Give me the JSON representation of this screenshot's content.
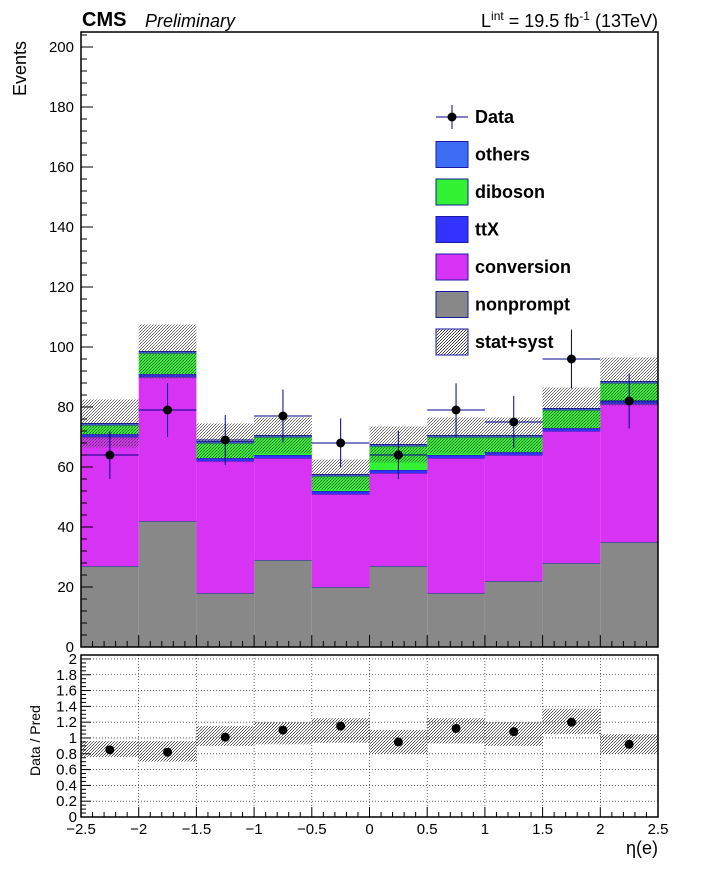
{
  "header": {
    "experiment": "CMS",
    "status": "Preliminary",
    "lumi_prefix": "L",
    "lumi_sup": "int",
    "lumi_value": " = 19.5 fb",
    "lumi_unit_sup": "-1",
    "energy": " (13TeV)"
  },
  "colors": {
    "others": "#3d6df5",
    "diboson": "#33f233",
    "ttX": "#3333ff",
    "conversion": "#d633f5",
    "nonprompt": "#888888",
    "outline": "#1a1aa6",
    "data": "#000000",
    "data_err": "#00008b"
  },
  "chart_data": [
    {
      "type": "bar",
      "stacked": true,
      "xlabel": "η(e)",
      "ylabel": "Events",
      "xlim": [
        -2.5,
        2.5
      ],
      "ylim": [
        0,
        205
      ],
      "bin_edges": [
        -2.5,
        -2.0,
        -1.5,
        -1.0,
        -0.5,
        0.0,
        0.5,
        1.0,
        1.5,
        2.0,
        2.5
      ],
      "x_ticks": [
        "−2.5",
        "−2",
        "−1.5",
        "−1",
        "−0.5",
        "0",
        "0.5",
        "1",
        "1.5",
        "2",
        "2.5"
      ],
      "y_ticks": [
        "0",
        "20",
        "40",
        "60",
        "80",
        "100",
        "120",
        "140",
        "160",
        "180",
        "200"
      ],
      "series": [
        {
          "name": "nonprompt",
          "values": [
            27,
            42,
            18,
            29,
            20,
            27,
            18,
            22,
            28,
            35
          ]
        },
        {
          "name": "conversion",
          "values": [
            43,
            48,
            44,
            34,
            31,
            31,
            45,
            42,
            44,
            46
          ]
        },
        {
          "name": "ttX",
          "values": [
            1,
            1,
            1,
            1,
            1,
            1,
            1,
            1,
            1,
            1
          ]
        },
        {
          "name": "diboson",
          "values": [
            3,
            7,
            5,
            6,
            5,
            8,
            6,
            5,
            6,
            6
          ]
        },
        {
          "name": "others",
          "values": [
            0.5,
            0.5,
            0.5,
            0.5,
            0.5,
            0.5,
            0.5,
            0.5,
            0.5,
            0.5
          ]
        }
      ],
      "total_uncertainty": [
        8,
        9,
        6,
        6,
        5,
        6,
        6,
        6,
        7,
        8
      ],
      "data": {
        "name": "Data",
        "x": [
          -2.25,
          -1.75,
          -1.25,
          -0.75,
          -0.25,
          0.25,
          0.75,
          1.25,
          1.75,
          2.25
        ],
        "y": [
          64,
          79,
          69,
          77,
          68,
          64,
          79,
          75,
          96,
          82
        ],
        "yerr": [
          8,
          9,
          8.3,
          8.8,
          8.2,
          8,
          8.9,
          8.7,
          9.8,
          9.1
        ]
      },
      "legend": {
        "position": "top-right",
        "entries": [
          "Data",
          "others",
          "diboson",
          "ttX",
          "conversion",
          "nonprompt",
          "stat+syst"
        ]
      }
    },
    {
      "type": "scatter",
      "xlabel": "η(e)",
      "ylabel": "Data / Pred",
      "xlim": [
        -2.5,
        2.5
      ],
      "ylim": [
        0,
        2.05
      ],
      "x_ticks": [
        "−2.5",
        "−2",
        "−1.5",
        "−1",
        "−0.5",
        "0",
        "0.5",
        "1",
        "1.5",
        "2",
        "2.5"
      ],
      "y_ticks": [
        "0",
        "0.2",
        "0.4",
        "0.6",
        "0.8",
        "1",
        "1.2",
        "1.4",
        "1.6",
        "1.8",
        "2"
      ],
      "x": [
        -2.25,
        -1.75,
        -1.25,
        -0.75,
        -0.25,
        0.25,
        0.75,
        1.25,
        1.75,
        2.25
      ],
      "ratio": [
        0.85,
        0.82,
        1.01,
        1.1,
        1.15,
        0.95,
        1.12,
        1.08,
        1.2,
        0.92
      ],
      "band_low": [
        0.76,
        0.7,
        0.9,
        0.92,
        0.94,
        0.8,
        0.93,
        0.9,
        1.05,
        0.8
      ],
      "band_high": [
        0.96,
        0.96,
        1.15,
        1.2,
        1.25,
        1.1,
        1.25,
        1.2,
        1.37,
        1.05
      ]
    }
  ]
}
